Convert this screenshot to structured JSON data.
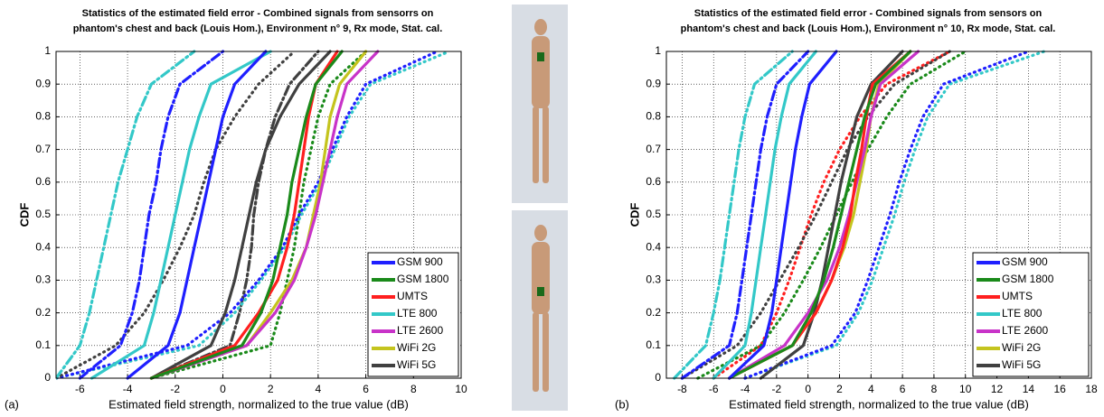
{
  "chart_data": [
    {
      "type": "line",
      "panel_label": "(a)",
      "title": [
        "Statistics of the estimated field error - Combined signals from sensorrs on",
        "phantom's chest and back (Louis Hom.), Environment n° 9, Rx mode, Stat. cal."
      ],
      "xlabel": "Estimated field strength, normalized to the true value (dB)",
      "ylabel": "CDF",
      "xlim": [
        -7,
        10
      ],
      "xticks": [
        -6,
        -4,
        -2,
        0,
        2,
        4,
        6,
        8,
        10
      ],
      "ylim": [
        0,
        1
      ],
      "yticks": [
        0,
        0.1,
        0.2,
        0.3,
        0.4,
        0.5,
        0.6,
        0.7,
        0.8,
        0.9,
        1
      ],
      "grid": true,
      "legend": "lower right",
      "series": [
        {
          "name": "GSM 900",
          "color": "#1f1fff",
          "style": "solid",
          "x": [
            -4,
            -2.3,
            -1.8,
            -1.5,
            -1.2,
            -0.9,
            -0.6,
            -0.3,
            0,
            0.5,
            1.8
          ],
          "values": [
            0,
            0.1,
            0.2,
            0.3,
            0.4,
            0.5,
            0.6,
            0.7,
            0.8,
            0.9,
            1
          ]
        },
        {
          "name": "GSM 1800",
          "color": "#1a8a1a",
          "style": "solid",
          "x": [
            -3,
            0.8,
            1.6,
            2.1,
            2.4,
            2.7,
            2.9,
            3.2,
            3.5,
            3.9,
            5
          ],
          "values": [
            0,
            0.1,
            0.2,
            0.3,
            0.4,
            0.5,
            0.6,
            0.7,
            0.8,
            0.9,
            1
          ]
        },
        {
          "name": "UMTS",
          "color": "#ff1f1f",
          "style": "solid",
          "x": [
            -3,
            0.5,
            1.5,
            2.3,
            2.7,
            3,
            3.2,
            3.4,
            3.6,
            3.9,
            4.8
          ],
          "values": [
            0,
            0.1,
            0.2,
            0.3,
            0.4,
            0.5,
            0.6,
            0.7,
            0.8,
            0.9,
            1
          ]
        },
        {
          "name": "LTE 800",
          "color": "#33c8c8",
          "style": "solid",
          "x": [
            -5.5,
            -3.3,
            -2.9,
            -2.6,
            -2.3,
            -2,
            -1.7,
            -1.4,
            -1,
            -0.5,
            2
          ],
          "values": [
            0,
            0.1,
            0.2,
            0.3,
            0.4,
            0.5,
            0.6,
            0.7,
            0.8,
            0.9,
            1
          ]
        },
        {
          "name": "LTE 2600",
          "color": "#c833c8",
          "style": "solid",
          "x": [
            -3,
            1,
            2.2,
            3,
            3.5,
            3.9,
            4.2,
            4.5,
            4.8,
            5.2,
            6.5
          ],
          "values": [
            0,
            0.1,
            0.2,
            0.3,
            0.4,
            0.5,
            0.6,
            0.7,
            0.8,
            0.9,
            1
          ]
        },
        {
          "name": "WiFi 2G",
          "color": "#c4c41e",
          "style": "solid",
          "x": [
            -3,
            1,
            2,
            2.9,
            3.5,
            3.8,
            4.1,
            4.3,
            4.5,
            4.9,
            6
          ],
          "values": [
            0,
            0.1,
            0.2,
            0.3,
            0.4,
            0.5,
            0.6,
            0.7,
            0.8,
            0.9,
            1
          ]
        },
        {
          "name": "WiFi 5G",
          "color": "#404040",
          "style": "solid",
          "x": [
            -3,
            -0.5,
            0.1,
            0.5,
            0.8,
            1.1,
            1.4,
            1.8,
            2.4,
            3.2,
            4.5
          ],
          "values": [
            0,
            0.1,
            0.2,
            0.3,
            0.4,
            0.5,
            0.6,
            0.7,
            0.8,
            0.9,
            1
          ]
        },
        {
          "color": "#33c8c8",
          "style": "dashdot",
          "x": [
            -7,
            -6,
            -5.6,
            -5.3,
            -5,
            -4.7,
            -4.4,
            -4,
            -3.6,
            -3,
            -1.2
          ],
          "values": [
            0,
            0.1,
            0.2,
            0.3,
            0.4,
            0.5,
            0.6,
            0.7,
            0.8,
            0.9,
            1
          ]
        },
        {
          "color": "#1f1fff",
          "style": "dashdot",
          "x": [
            -6,
            -4.3,
            -3.8,
            -3.5,
            -3.3,
            -3.1,
            -2.8,
            -2.6,
            -2.3,
            -1.8,
            0
          ],
          "values": [
            0,
            0.1,
            0.2,
            0.3,
            0.4,
            0.5,
            0.6,
            0.7,
            0.8,
            0.9,
            1
          ]
        },
        {
          "color": "#404040",
          "style": "dotted",
          "x": [
            -7,
            -4.5,
            -3.3,
            -2.5,
            -1.8,
            -1.2,
            -0.8,
            -0.3,
            0.5,
            1.5,
            3
          ],
          "values": [
            0,
            0.1,
            0.2,
            0.3,
            0.4,
            0.5,
            0.6,
            0.7,
            0.8,
            0.9,
            1
          ]
        },
        {
          "color": "#1f1fff",
          "style": "dotted",
          "x": [
            -7,
            -1.5,
            0.3,
            1.5,
            2.5,
            3.2,
            4,
            4.6,
            5.2,
            6,
            9
          ],
          "values": [
            0,
            0.1,
            0.2,
            0.3,
            0.4,
            0.5,
            0.6,
            0.7,
            0.8,
            0.9,
            1
          ]
        },
        {
          "color": "#33c8c8",
          "style": "dotted",
          "x": [
            -7,
            -1,
            0.5,
            1.6,
            2.6,
            3.3,
            4.1,
            4.7,
            5.3,
            6.2,
            9.5
          ],
          "values": [
            0,
            0.1,
            0.2,
            0.3,
            0.4,
            0.5,
            0.6,
            0.7,
            0.8,
            0.9,
            1
          ]
        },
        {
          "color": "#1a8a1a",
          "style": "dotted",
          "x": [
            -3,
            2,
            2.4,
            2.7,
            3,
            3.2,
            3.4,
            3.7,
            4,
            4.5,
            6
          ],
          "values": [
            0,
            0.1,
            0.2,
            0.3,
            0.4,
            0.5,
            0.6,
            0.7,
            0.8,
            0.9,
            1
          ]
        },
        {
          "color": "#404040",
          "style": "dashdot",
          "x": [
            -3,
            0.3,
            0.7,
            1,
            1.2,
            1.3,
            1.5,
            1.8,
            2.2,
            2.8,
            4
          ],
          "values": [
            0,
            0.1,
            0.2,
            0.3,
            0.4,
            0.5,
            0.6,
            0.7,
            0.8,
            0.9,
            1
          ]
        }
      ]
    },
    {
      "type": "line",
      "panel_label": "(b)",
      "title": [
        "Statistics of the estimated field error -  Combined signals from sensors on",
        "phantom's chest and back (Louis Hom.), Environment n° 10, Rx mode, Stat. cal."
      ],
      "xlabel": "Estimated field strength, normalized to the true value (dB)",
      "ylabel": "CDF",
      "xlim": [
        -9,
        18
      ],
      "xticks": [
        -8,
        -6,
        -4,
        -2,
        0,
        2,
        4,
        6,
        8,
        10,
        12,
        14,
        16,
        18
      ],
      "ylim": [
        0,
        1
      ],
      "yticks": [
        0,
        0.1,
        0.2,
        0.3,
        0.4,
        0.5,
        0.6,
        0.7,
        0.8,
        0.9,
        1
      ],
      "grid": true,
      "legend": "lower right",
      "series": [
        {
          "name": "GSM 900",
          "color": "#1f1fff",
          "style": "solid",
          "x": [
            -5,
            -2.8,
            -2.3,
            -2,
            -1.7,
            -1.4,
            -1.1,
            -0.8,
            -0.4,
            0.1,
            1.8
          ],
          "values": [
            0,
            0.1,
            0.2,
            0.3,
            0.4,
            0.5,
            0.6,
            0.7,
            0.8,
            0.9,
            1
          ]
        },
        {
          "name": "GSM 1800",
          "color": "#1a8a1a",
          "style": "solid",
          "x": [
            -5,
            -1,
            0.2,
            1,
            1.6,
            2.1,
            2.6,
            3.1,
            3.6,
            4.3,
            6.5
          ],
          "values": [
            0,
            0.1,
            0.2,
            0.3,
            0.4,
            0.5,
            0.6,
            0.7,
            0.8,
            0.9,
            1
          ]
        },
        {
          "name": "UMTS",
          "color": "#ff1f1f",
          "style": "solid",
          "x": [
            -5,
            -1,
            0.5,
            1.5,
            2.2,
            2.7,
            3,
            3.4,
            3.7,
            4.1,
            6.5
          ],
          "values": [
            0,
            0.1,
            0.2,
            0.3,
            0.4,
            0.5,
            0.6,
            0.7,
            0.8,
            0.9,
            1
          ]
        },
        {
          "name": "LTE 800",
          "color": "#33c8c8",
          "style": "solid",
          "x": [
            -6,
            -4,
            -3.6,
            -3.3,
            -3,
            -2.7,
            -2.4,
            -2.1,
            -1.7,
            -1.2,
            0.5
          ],
          "values": [
            0,
            0.1,
            0.2,
            0.3,
            0.4,
            0.5,
            0.6,
            0.7,
            0.8,
            0.9,
            1
          ]
        },
        {
          "name": "LTE 2600",
          "color": "#c833c8",
          "style": "solid",
          "x": [
            -5,
            -1.5,
            0,
            1.2,
            2,
            2.6,
            3.1,
            3.6,
            4,
            4.6,
            7
          ],
          "values": [
            0,
            0.1,
            0.2,
            0.3,
            0.4,
            0.5,
            0.6,
            0.7,
            0.8,
            0.9,
            1
          ]
        },
        {
          "name": "WiFi 2G",
          "color": "#c4c41e",
          "style": "solid",
          "x": [
            -5,
            -1,
            0.5,
            1.5,
            2.3,
            2.9,
            3.3,
            3.7,
            4,
            4.5,
            6.5
          ],
          "values": [
            0,
            0.1,
            0.2,
            0.3,
            0.4,
            0.5,
            0.6,
            0.7,
            0.8,
            0.9,
            1
          ]
        },
        {
          "name": "WiFi 5G",
          "color": "#404040",
          "style": "solid",
          "x": [
            -3,
            -0.3,
            0.4,
            0.9,
            1.3,
            1.7,
            2.1,
            2.6,
            3.1,
            4,
            6
          ],
          "values": [
            0,
            0.1,
            0.2,
            0.3,
            0.4,
            0.5,
            0.6,
            0.7,
            0.8,
            0.9,
            1
          ]
        },
        {
          "color": "#33c8c8",
          "style": "dashdot",
          "x": [
            -8.5,
            -6.5,
            -6,
            -5.6,
            -5.3,
            -5,
            -4.7,
            -4.4,
            -4,
            -3.4,
            -1
          ],
          "values": [
            0,
            0.1,
            0.2,
            0.3,
            0.4,
            0.5,
            0.6,
            0.7,
            0.8,
            0.9,
            1
          ]
        },
        {
          "color": "#1f1fff",
          "style": "dashdot",
          "x": [
            -8,
            -5,
            -4.5,
            -4.2,
            -3.9,
            -3.6,
            -3.3,
            -3,
            -2.6,
            -2,
            0
          ],
          "values": [
            0,
            0.1,
            0.2,
            0.3,
            0.4,
            0.5,
            0.6,
            0.7,
            0.8,
            0.9,
            1
          ]
        },
        {
          "color": "#1f1fff",
          "style": "dotted",
          "x": [
            -4,
            1.5,
            3,
            3.8,
            4.5,
            5.2,
            5.8,
            6.5,
            7.3,
            8.6,
            14
          ],
          "values": [
            0,
            0.1,
            0.2,
            0.3,
            0.4,
            0.5,
            0.6,
            0.7,
            0.8,
            0.9,
            1
          ]
        },
        {
          "color": "#33c8c8",
          "style": "dotted",
          "x": [
            -4,
            1.8,
            3.2,
            4.1,
            4.8,
            5.5,
            6.1,
            6.8,
            7.6,
            9,
            15
          ],
          "values": [
            0,
            0.1,
            0.2,
            0.3,
            0.4,
            0.5,
            0.6,
            0.7,
            0.8,
            0.9,
            1
          ]
        },
        {
          "color": "#1a8a1a",
          "style": "dotted",
          "x": [
            -7,
            -3,
            -1.5,
            -0.3,
            0.8,
            1.8,
            2.8,
            3.8,
            5,
            6.5,
            10
          ],
          "values": [
            0,
            0.1,
            0.2,
            0.3,
            0.4,
            0.5,
            0.6,
            0.7,
            0.8,
            0.9,
            1
          ]
        },
        {
          "color": "#404040",
          "style": "dotted",
          "x": [
            -8,
            -4.5,
            -3,
            -1.8,
            -0.6,
            0.5,
            1.5,
            2.5,
            3.8,
            5.5,
            9
          ],
          "values": [
            0,
            0.1,
            0.2,
            0.3,
            0.4,
            0.5,
            0.6,
            0.7,
            0.8,
            0.9,
            1
          ]
        },
        {
          "color": "#ff1f1f",
          "style": "dotted",
          "x": [
            -6,
            -3,
            -2,
            -1.2,
            -0.5,
            0.2,
            1,
            2,
            3.3,
            5,
            9
          ],
          "values": [
            0,
            0.1,
            0.2,
            0.3,
            0.4,
            0.5,
            0.6,
            0.7,
            0.8,
            0.9,
            1
          ]
        }
      ]
    }
  ]
}
